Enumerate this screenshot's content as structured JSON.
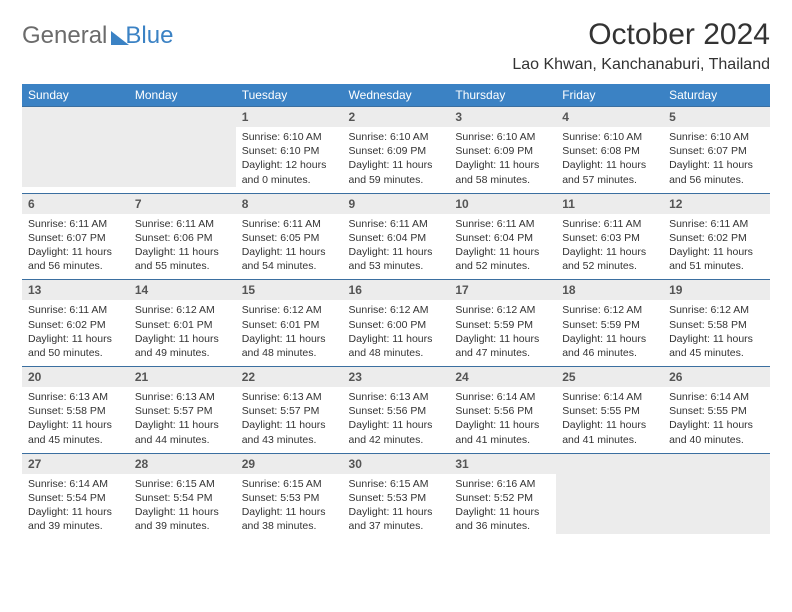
{
  "brand": {
    "part1": "General",
    "part2": "Blue"
  },
  "title": "October 2024",
  "location": "Lao Khwan, Kanchanaburi, Thailand",
  "colors": {
    "header_bg": "#3b82c4",
    "header_text": "#ffffff",
    "daynum_bg": "#ececec",
    "border": "#3b6fa0",
    "logo_gray": "#6b6b6b",
    "logo_blue": "#3b82c4",
    "page_bg": "#ffffff"
  },
  "day_headers": [
    "Sunday",
    "Monday",
    "Tuesday",
    "Wednesday",
    "Thursday",
    "Friday",
    "Saturday"
  ],
  "weeks": [
    [
      null,
      null,
      {
        "n": "1",
        "sr": "6:10 AM",
        "ss": "6:10 PM",
        "dl": "12 hours and 0 minutes."
      },
      {
        "n": "2",
        "sr": "6:10 AM",
        "ss": "6:09 PM",
        "dl": "11 hours and 59 minutes."
      },
      {
        "n": "3",
        "sr": "6:10 AM",
        "ss": "6:09 PM",
        "dl": "11 hours and 58 minutes."
      },
      {
        "n": "4",
        "sr": "6:10 AM",
        "ss": "6:08 PM",
        "dl": "11 hours and 57 minutes."
      },
      {
        "n": "5",
        "sr": "6:10 AM",
        "ss": "6:07 PM",
        "dl": "11 hours and 56 minutes."
      }
    ],
    [
      {
        "n": "6",
        "sr": "6:11 AM",
        "ss": "6:07 PM",
        "dl": "11 hours and 56 minutes."
      },
      {
        "n": "7",
        "sr": "6:11 AM",
        "ss": "6:06 PM",
        "dl": "11 hours and 55 minutes."
      },
      {
        "n": "8",
        "sr": "6:11 AM",
        "ss": "6:05 PM",
        "dl": "11 hours and 54 minutes."
      },
      {
        "n": "9",
        "sr": "6:11 AM",
        "ss": "6:04 PM",
        "dl": "11 hours and 53 minutes."
      },
      {
        "n": "10",
        "sr": "6:11 AM",
        "ss": "6:04 PM",
        "dl": "11 hours and 52 minutes."
      },
      {
        "n": "11",
        "sr": "6:11 AM",
        "ss": "6:03 PM",
        "dl": "11 hours and 52 minutes."
      },
      {
        "n": "12",
        "sr": "6:11 AM",
        "ss": "6:02 PM",
        "dl": "11 hours and 51 minutes."
      }
    ],
    [
      {
        "n": "13",
        "sr": "6:11 AM",
        "ss": "6:02 PM",
        "dl": "11 hours and 50 minutes."
      },
      {
        "n": "14",
        "sr": "6:12 AM",
        "ss": "6:01 PM",
        "dl": "11 hours and 49 minutes."
      },
      {
        "n": "15",
        "sr": "6:12 AM",
        "ss": "6:01 PM",
        "dl": "11 hours and 48 minutes."
      },
      {
        "n": "16",
        "sr": "6:12 AM",
        "ss": "6:00 PM",
        "dl": "11 hours and 48 minutes."
      },
      {
        "n": "17",
        "sr": "6:12 AM",
        "ss": "5:59 PM",
        "dl": "11 hours and 47 minutes."
      },
      {
        "n": "18",
        "sr": "6:12 AM",
        "ss": "5:59 PM",
        "dl": "11 hours and 46 minutes."
      },
      {
        "n": "19",
        "sr": "6:12 AM",
        "ss": "5:58 PM",
        "dl": "11 hours and 45 minutes."
      }
    ],
    [
      {
        "n": "20",
        "sr": "6:13 AM",
        "ss": "5:58 PM",
        "dl": "11 hours and 45 minutes."
      },
      {
        "n": "21",
        "sr": "6:13 AM",
        "ss": "5:57 PM",
        "dl": "11 hours and 44 minutes."
      },
      {
        "n": "22",
        "sr": "6:13 AM",
        "ss": "5:57 PM",
        "dl": "11 hours and 43 minutes."
      },
      {
        "n": "23",
        "sr": "6:13 AM",
        "ss": "5:56 PM",
        "dl": "11 hours and 42 minutes."
      },
      {
        "n": "24",
        "sr": "6:14 AM",
        "ss": "5:56 PM",
        "dl": "11 hours and 41 minutes."
      },
      {
        "n": "25",
        "sr": "6:14 AM",
        "ss": "5:55 PM",
        "dl": "11 hours and 41 minutes."
      },
      {
        "n": "26",
        "sr": "6:14 AM",
        "ss": "5:55 PM",
        "dl": "11 hours and 40 minutes."
      }
    ],
    [
      {
        "n": "27",
        "sr": "6:14 AM",
        "ss": "5:54 PM",
        "dl": "11 hours and 39 minutes."
      },
      {
        "n": "28",
        "sr": "6:15 AM",
        "ss": "5:54 PM",
        "dl": "11 hours and 39 minutes."
      },
      {
        "n": "29",
        "sr": "6:15 AM",
        "ss": "5:53 PM",
        "dl": "11 hours and 38 minutes."
      },
      {
        "n": "30",
        "sr": "6:15 AM",
        "ss": "5:53 PM",
        "dl": "11 hours and 37 minutes."
      },
      {
        "n": "31",
        "sr": "6:16 AM",
        "ss": "5:52 PM",
        "dl": "11 hours and 36 minutes."
      },
      null,
      null
    ]
  ],
  "labels": {
    "sunrise": "Sunrise: ",
    "sunset": "Sunset: ",
    "daylight": "Daylight: "
  }
}
